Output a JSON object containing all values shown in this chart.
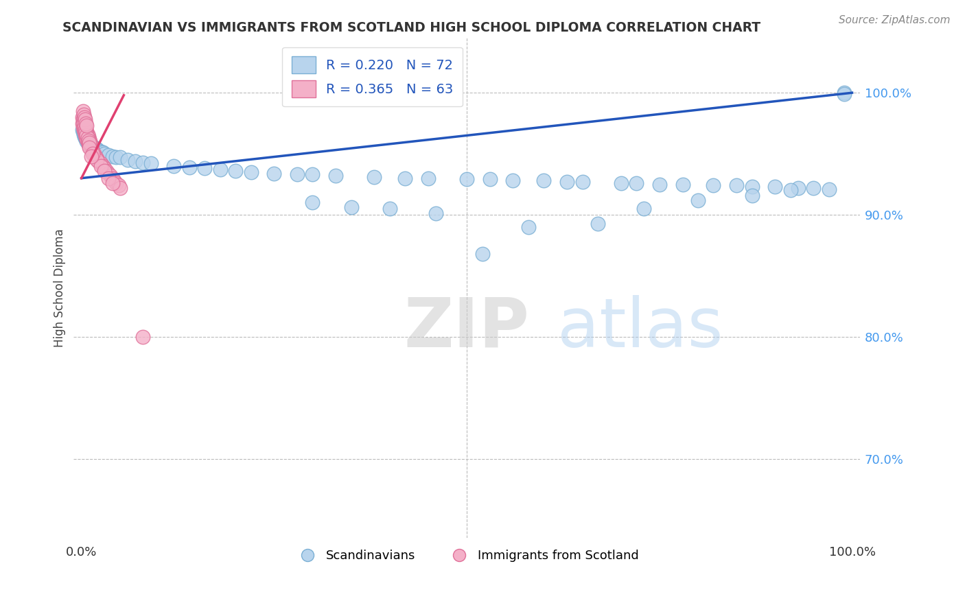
{
  "title": "SCANDINAVIAN VS IMMIGRANTS FROM SCOTLAND HIGH SCHOOL DIPLOMA CORRELATION CHART",
  "source_text": "Source: ZipAtlas.com",
  "ylabel": "High School Diploma",
  "watermark_zip": "ZIP",
  "watermark_atlas": "atlas",
  "blue_line_x": [
    0.0,
    1.0
  ],
  "blue_line_y": [
    0.93,
    1.0
  ],
  "pink_line_x": [
    0.0,
    0.055
  ],
  "pink_line_y": [
    0.93,
    0.998
  ],
  "blue_dot_color": "#b8d4ed",
  "blue_dot_edge_color": "#7aafd4",
  "pink_dot_color": "#f4b0c8",
  "pink_dot_edge_color": "#e07099",
  "blue_line_color": "#2255bb",
  "pink_line_color": "#e04070",
  "grid_color": "#bbbbbb",
  "right_label_color": "#4499ee",
  "title_color": "#333333",
  "background_color": "#ffffff",
  "ylim_low": 0.635,
  "ylim_high": 1.045,
  "xlim_low": -0.01,
  "xlim_high": 1.01,
  "yticks": [
    0.7,
    0.8,
    0.9,
    1.0
  ],
  "ytick_labels": [
    "70.0%",
    "80.0%",
    "90.0%",
    "100.0%"
  ],
  "xticks": [
    0.0,
    1.0
  ],
  "xtick_labels": [
    "0.0%",
    "100.0%"
  ],
  "legend_R1": "R = 0.220",
  "legend_N1": "N = 72",
  "legend_R2": "R = 0.365",
  "legend_N2": "N = 63",
  "bottom_legend_blue": "Scandinavians",
  "bottom_legend_pink": "Immigrants from Scotland",
  "blue_scatter_x": [
    0.001,
    0.002,
    0.003,
    0.004,
    0.005,
    0.006,
    0.007,
    0.008,
    0.009,
    0.01,
    0.011,
    0.012,
    0.013,
    0.015,
    0.016,
    0.018,
    0.02,
    0.022,
    0.025,
    0.028,
    0.03,
    0.035,
    0.04,
    0.045,
    0.05,
    0.06,
    0.07,
    0.08,
    0.09,
    0.12,
    0.14,
    0.16,
    0.18,
    0.2,
    0.22,
    0.25,
    0.28,
    0.3,
    0.33,
    0.38,
    0.42,
    0.45,
    0.5,
    0.53,
    0.56,
    0.6,
    0.63,
    0.65,
    0.7,
    0.72,
    0.75,
    0.78,
    0.82,
    0.85,
    0.87,
    0.9,
    0.93,
    0.95,
    0.97,
    0.99,
    0.3,
    0.35,
    0.4,
    0.46,
    0.52,
    0.58,
    0.67,
    0.73,
    0.8,
    0.87,
    0.92,
    0.99
  ],
  "blue_scatter_y": [
    0.97,
    0.968,
    0.966,
    0.964,
    0.963,
    0.962,
    0.96,
    0.96,
    0.958,
    0.958,
    0.957,
    0.957,
    0.956,
    0.956,
    0.955,
    0.954,
    0.954,
    0.953,
    0.952,
    0.951,
    0.95,
    0.949,
    0.948,
    0.947,
    0.947,
    0.945,
    0.944,
    0.943,
    0.942,
    0.94,
    0.939,
    0.938,
    0.937,
    0.936,
    0.935,
    0.934,
    0.933,
    0.933,
    0.932,
    0.931,
    0.93,
    0.93,
    0.929,
    0.929,
    0.928,
    0.928,
    0.927,
    0.927,
    0.926,
    0.926,
    0.925,
    0.925,
    0.924,
    0.924,
    0.923,
    0.923,
    0.922,
    0.922,
    0.921,
    1.0,
    0.91,
    0.906,
    0.905,
    0.901,
    0.868,
    0.89,
    0.893,
    0.905,
    0.912,
    0.916,
    0.92,
    0.999
  ],
  "pink_scatter_x": [
    0.001,
    0.001,
    0.002,
    0.002,
    0.003,
    0.003,
    0.004,
    0.004,
    0.005,
    0.005,
    0.006,
    0.006,
    0.007,
    0.007,
    0.008,
    0.008,
    0.009,
    0.009,
    0.01,
    0.01,
    0.011,
    0.012,
    0.013,
    0.014,
    0.015,
    0.016,
    0.018,
    0.02,
    0.022,
    0.025,
    0.028,
    0.03,
    0.032,
    0.035,
    0.038,
    0.04,
    0.042,
    0.045,
    0.048,
    0.05,
    0.003,
    0.004,
    0.005,
    0.006,
    0.007,
    0.008,
    0.009,
    0.01,
    0.002,
    0.003,
    0.004,
    0.005,
    0.006,
    0.007,
    0.02,
    0.025,
    0.03,
    0.035,
    0.04,
    0.01,
    0.015,
    0.013,
    0.08
  ],
  "pink_scatter_y": [
    0.98,
    0.975,
    0.978,
    0.972,
    0.976,
    0.97,
    0.974,
    0.968,
    0.972,
    0.966,
    0.97,
    0.964,
    0.968,
    0.962,
    0.966,
    0.96,
    0.964,
    0.958,
    0.962,
    0.956,
    0.96,
    0.958,
    0.956,
    0.954,
    0.952,
    0.95,
    0.948,
    0.946,
    0.944,
    0.942,
    0.94,
    0.938,
    0.936,
    0.934,
    0.932,
    0.93,
    0.928,
    0.926,
    0.924,
    0.922,
    0.975,
    0.972,
    0.97,
    0.968,
    0.965,
    0.963,
    0.961,
    0.959,
    0.985,
    0.982,
    0.98,
    0.978,
    0.975,
    0.973,
    0.945,
    0.94,
    0.936,
    0.93,
    0.926,
    0.955,
    0.95,
    0.948,
    0.8
  ]
}
